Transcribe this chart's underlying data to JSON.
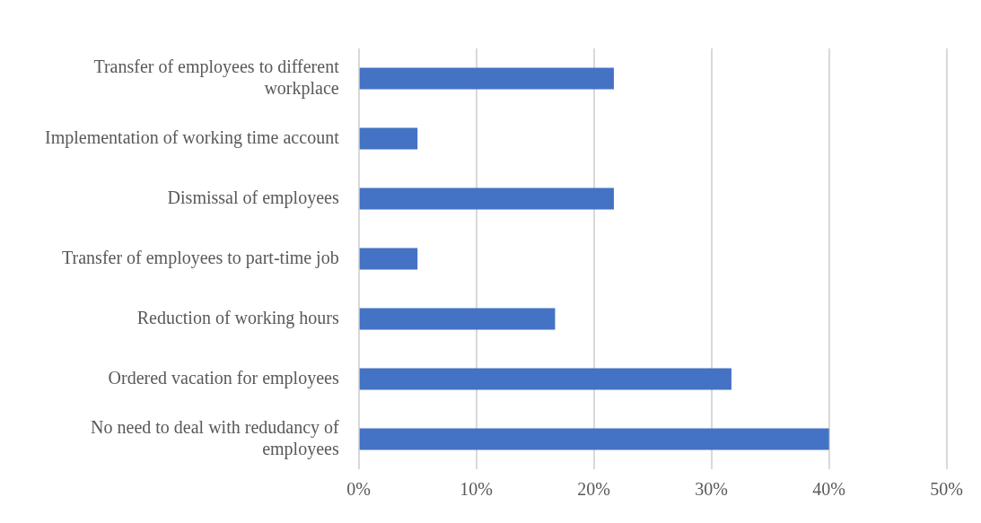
{
  "chart_data": {
    "type": "bar",
    "orientation": "horizontal",
    "categories": [
      "Transfer of employees to different workplace",
      "Implementation of working time account",
      "Dismissal of employees",
      "Transfer of employees to part-time job",
      "Reduction of working hours",
      "Ordered vacation for employees",
      "No need to deal with redudancy of employees"
    ],
    "values": [
      21.7,
      5,
      21.7,
      5,
      16.7,
      31.7,
      40
    ],
    "color": "#4472c4",
    "xlim": [
      0,
      50
    ],
    "xticks": [
      {
        "value": 0,
        "label": "0%"
      },
      {
        "value": 10,
        "label": "10%"
      },
      {
        "value": 20,
        "label": "20%"
      },
      {
        "value": 30,
        "label": "30%"
      },
      {
        "value": 40,
        "label": "40%"
      },
      {
        "value": 50,
        "label": "50%"
      }
    ],
    "grid": "x",
    "legend": false
  }
}
